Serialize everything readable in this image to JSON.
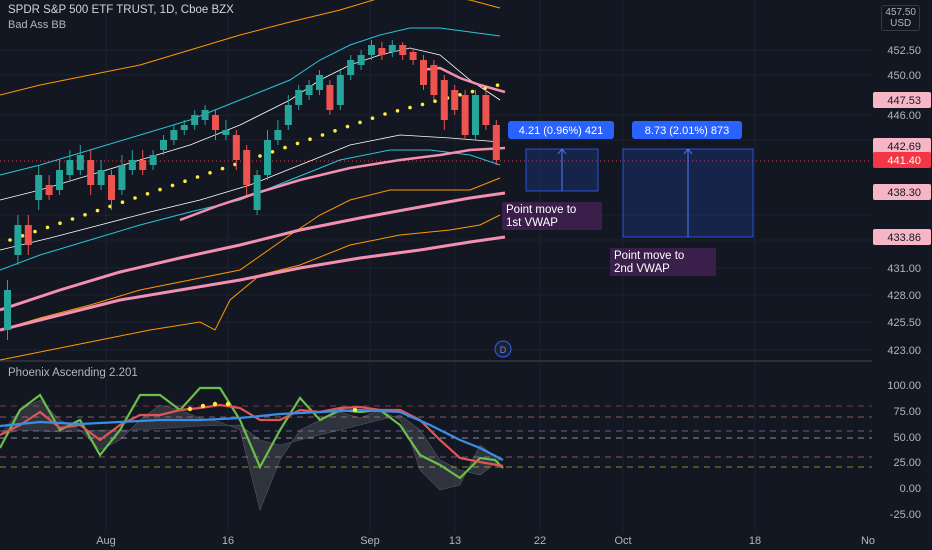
{
  "header": {
    "symbol_line": "SPDR S&P 500 ETF TRUST, 1D, Cboe BZX",
    "indicator_line": "Bad Ass BB",
    "currency": "USD",
    "currency_top_value": "457.50"
  },
  "oscillator": {
    "title": "Phoenix Ascending 2.201"
  },
  "time_axis": [
    "Aug",
    "16",
    "Sep",
    "13",
    "22",
    "Oct",
    "18",
    "No"
  ],
  "price_axis": [
    "452.50",
    "450.00",
    "446.00",
    "431.00",
    "428.00",
    "425.50",
    "423.00"
  ],
  "price_badges": [
    {
      "label": "447.53",
      "color": "#f7b6c6"
    },
    {
      "label": "442.69",
      "color": "#f7b6c6"
    },
    {
      "label": "441.40",
      "color": "#f23645"
    },
    {
      "label": "438.30",
      "color": "#f7b6c6"
    },
    {
      "label": "433.86",
      "color": "#f7b6c6"
    }
  ],
  "osc_axis": [
    "100.00",
    "75.00",
    "50.00",
    "25.00",
    "0.00",
    "-25.00"
  ],
  "measure_boxes": [
    {
      "label": "4.21 (0.96%) 421"
    },
    {
      "label": "8.73 (2.01%) 873"
    }
  ],
  "annotations": [
    {
      "line1": "Point move to",
      "line2": "1st VWAP"
    },
    {
      "line1": "Point move to",
      "line2": "2nd VWAP"
    }
  ],
  "dividend_marker": "D",
  "colors": {
    "up": "#26a69a",
    "down": "#ef5350",
    "vwap": "#f48fb1",
    "dots": "#ffeb3b",
    "orange": "#ff9800",
    "cyan": "#26c6da",
    "measure": "#2962ff",
    "osc_green": "#6abf4b",
    "osc_red": "#e05555",
    "osc_blue": "#3a8ee6"
  }
}
